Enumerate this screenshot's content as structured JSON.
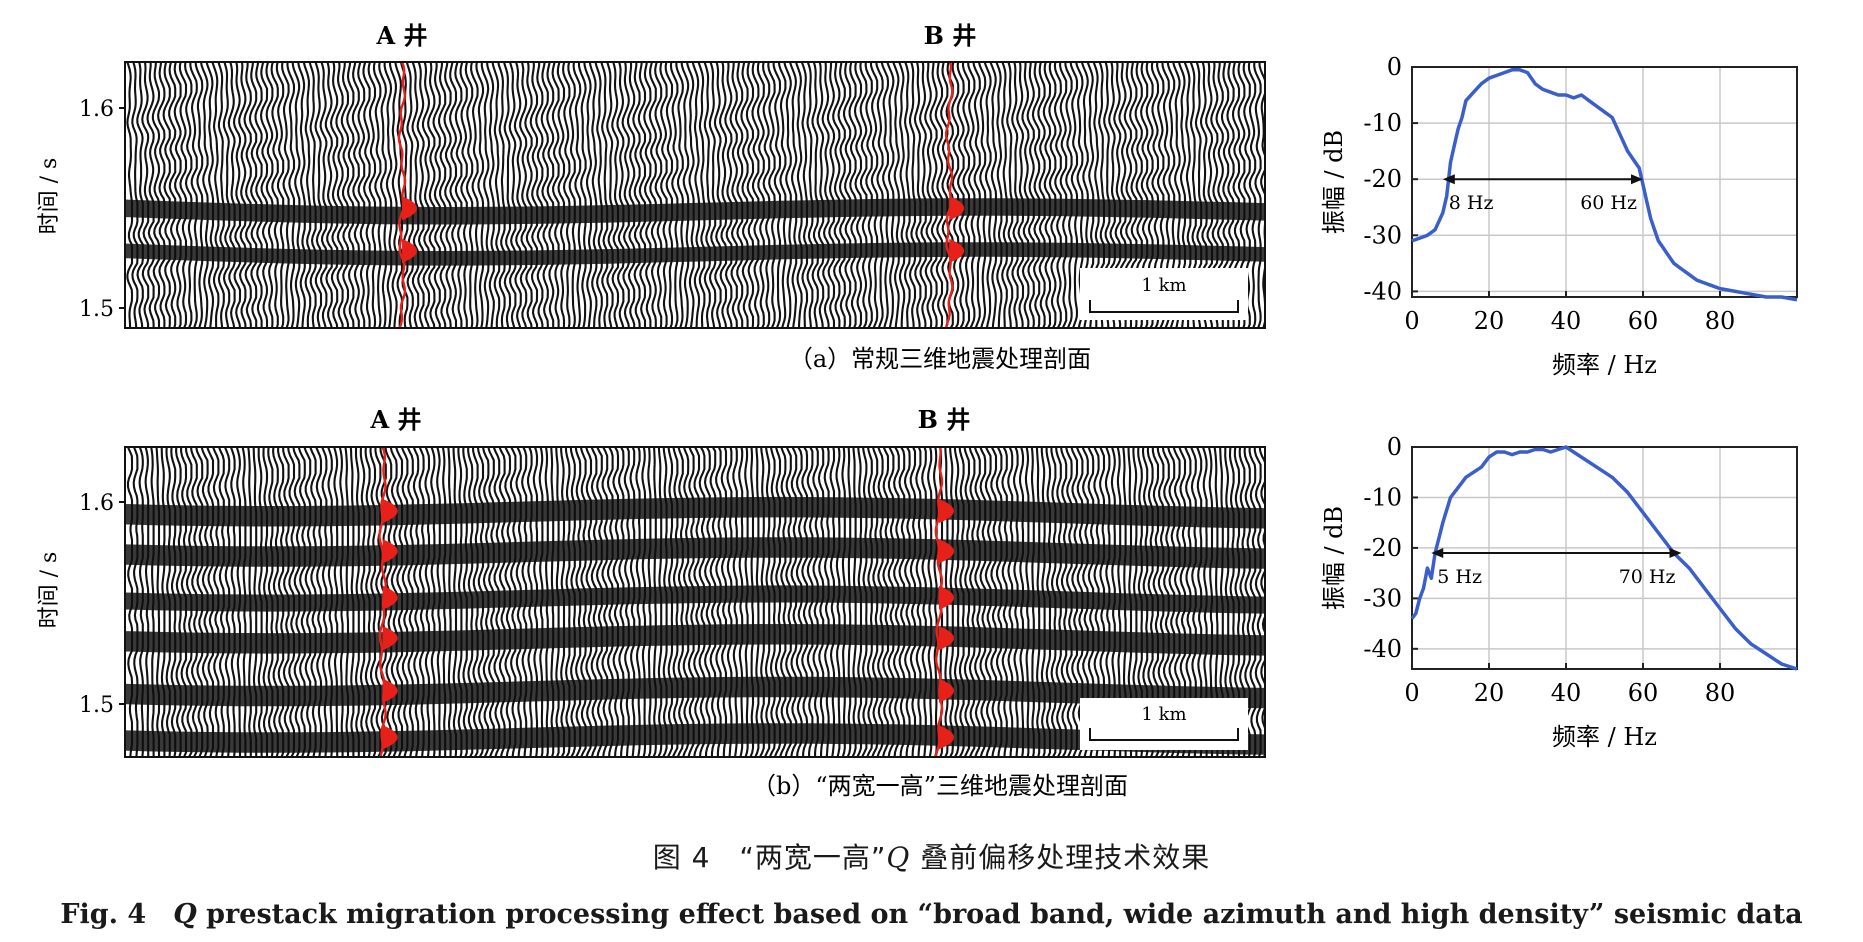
{
  "sections": [
    {
      "wells": [
        {
          "label": "A 井",
          "x_frac": 0.243
        },
        {
          "label": "B 井",
          "x_frac": 0.723
        }
      ],
      "ylabel": "时间 / s",
      "yticks": [
        "1.6",
        "1.5"
      ],
      "scalebar_label": "1 km",
      "caption": "（a）常规三维地震处理剖面"
    },
    {
      "wells": [
        {
          "label": "A 井",
          "x_frac": 0.226
        },
        {
          "label": "B 井",
          "x_frac": 0.714
        }
      ],
      "ylabel": "时间 / s",
      "yticks": [
        "1.6",
        "1.5"
      ],
      "scalebar_label": "1 km",
      "caption": "（b）“两宽一高”三维地震处理剖面"
    }
  ],
  "chart_data": [
    {
      "type": "line",
      "xlabel": "频率 / Hz",
      "ylabel": "振幅 / dB",
      "xlim": [
        0,
        100
      ],
      "ylim": [
        -41,
        0
      ],
      "xticks": [
        0,
        20,
        40,
        60,
        80
      ],
      "yticks": [
        0,
        -10,
        -20,
        -30,
        -40
      ],
      "grid": true,
      "color": "#3a5fcd",
      "x": [
        0,
        2,
        4,
        6,
        8,
        9,
        10,
        11,
        12,
        13,
        14,
        16,
        18,
        20,
        22,
        24,
        26,
        28,
        30,
        32,
        34,
        36,
        38,
        40,
        42,
        44,
        46,
        48,
        50,
        52,
        54,
        56,
        58,
        59,
        60,
        61,
        62,
        63,
        64,
        65,
        66,
        68,
        70,
        72,
        74,
        76,
        78,
        80,
        84,
        88,
        92,
        96,
        100
      ],
      "y": [
        -31,
        -30.5,
        -30,
        -29,
        -26,
        -23,
        -17,
        -14,
        -11,
        -9,
        -6,
        -4.5,
        -3,
        -2,
        -1.5,
        -1,
        -0.5,
        -0.5,
        -1,
        -3,
        -4,
        -4.5,
        -5,
        -5,
        -5.5,
        -5,
        -6,
        -7,
        -8,
        -9,
        -12,
        -15,
        -17,
        -18,
        -21,
        -24,
        -27,
        -29,
        -31,
        -32,
        -33,
        -35,
        -36,
        -37,
        -38,
        -38.5,
        -39,
        -39.5,
        -40,
        -40.5,
        -41,
        -41,
        -41.5
      ],
      "annotation": {
        "from": 8,
        "to": 60,
        "y": -20,
        "left_label": "8 Hz",
        "right_label": "60 Hz"
      }
    },
    {
      "type": "line",
      "xlabel": "频率 / Hz",
      "ylabel": "振幅 / dB",
      "xlim": [
        0,
        100
      ],
      "ylim": [
        -44,
        0
      ],
      "xticks": [
        0,
        20,
        40,
        60,
        80
      ],
      "yticks": [
        0,
        -10,
        -20,
        -30,
        -40
      ],
      "grid": true,
      "color": "#3a5fcd",
      "x": [
        0,
        1,
        2,
        3,
        4,
        5,
        6,
        7,
        8,
        10,
        12,
        14,
        16,
        18,
        20,
        22,
        24,
        26,
        28,
        30,
        32,
        34,
        36,
        38,
        40,
        44,
        48,
        52,
        56,
        60,
        64,
        68,
        72,
        76,
        80,
        84,
        88,
        92,
        96,
        100
      ],
      "y": [
        -34,
        -33,
        -30,
        -28,
        -24,
        -26,
        -21,
        -18,
        -15,
        -10,
        -8,
        -6,
        -5,
        -4,
        -2,
        -1,
        -1,
        -1.5,
        -1,
        -1,
        -0.5,
        -0.5,
        -1,
        -0.5,
        0,
        -2,
        -4,
        -6,
        -9,
        -13,
        -17,
        -21,
        -24,
        -28,
        -32,
        -36,
        -39,
        -41,
        -43,
        -44
      ],
      "annotation": {
        "from": 5,
        "to": 70,
        "y": -21,
        "left_label": "5 Hz",
        "right_label": "70 Hz"
      }
    }
  ],
  "figure_caption_cn": {
    "prefix": "图 4　“两宽一高”",
    "q": "Q",
    "suffix": " 叠前偏移处理技术效果"
  },
  "figure_caption_en": {
    "prefix": "Fig. 4　",
    "q": "Q",
    "suffix": " prestack migration processing effect based on “broad band, wide azimuth and high density” seismic data"
  }
}
